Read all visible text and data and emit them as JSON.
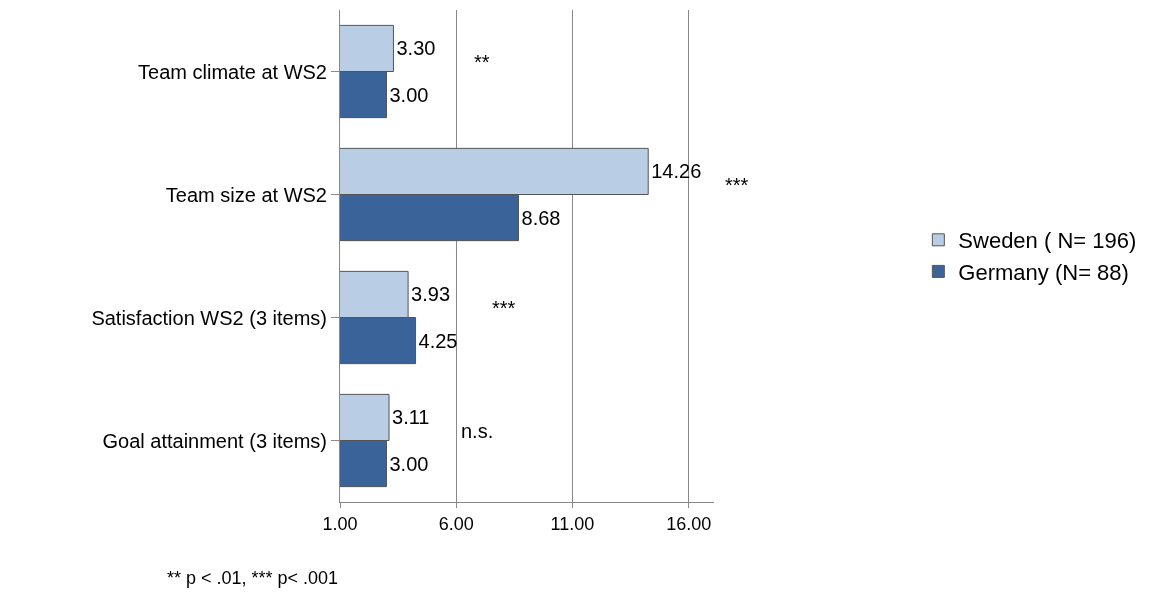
{
  "chart_data": {
    "type": "bar",
    "orientation": "horizontal",
    "categories": [
      "Team climate at WS2",
      "Team size at WS2",
      "Satisfaction WS2 (3 items)",
      "Goal attainment (3 items)"
    ],
    "series": [
      {
        "name": "Sweden ( N= 196)",
        "color": "#b9cde5",
        "values": [
          3.3,
          14.26,
          3.93,
          3.11
        ],
        "value_labels": [
          "3.30",
          "14.26",
          "3.93",
          "3.11"
        ]
      },
      {
        "name": "Germany (N= 88)",
        "color": "#3a6499",
        "values": [
          3.0,
          8.68,
          4.25,
          3.0
        ],
        "value_labels": [
          "3.00",
          "8.68",
          "4.25",
          "3.00"
        ]
      }
    ],
    "xlim": [
      1,
      17.1
    ],
    "xticks": [
      {
        "value": 1,
        "label": "1.00"
      },
      {
        "value": 6,
        "label": "6.00"
      },
      {
        "value": 11,
        "label": "11.00"
      },
      {
        "value": 16,
        "label": "16.00"
      }
    ],
    "grid": "x",
    "legend": "right",
    "annotations": [
      "**",
      "***",
      "***",
      "n.s.",
      "** p < .01, *** p< .001"
    ]
  }
}
